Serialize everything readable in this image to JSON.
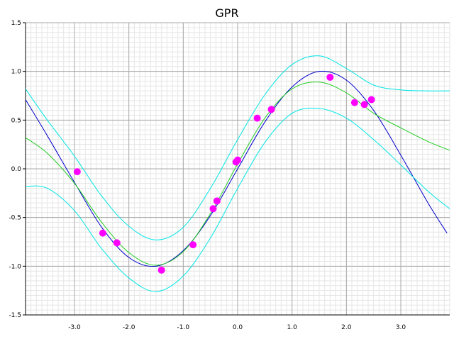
{
  "chart_data": {
    "type": "line",
    "title": "GPR",
    "xlabel": "",
    "ylabel": "",
    "xlim": [
      -3.9,
      3.9
    ],
    "ylim": [
      -1.5,
      1.5
    ],
    "grid": true,
    "xticks": [
      -3.0,
      -2.0,
      -1.0,
      0.0,
      1.0,
      2.0,
      3.0
    ],
    "xtick_labels": [
      "-3.0",
      "-2.0",
      "-1.0",
      "0.0",
      "1.0",
      "2.0",
      "3.0"
    ],
    "yticks": [
      -1.5,
      -1.0,
      -0.5,
      0.0,
      0.5,
      1.0,
      1.5
    ],
    "ytick_labels": [
      "-1.5",
      "-1.0",
      "-0.5",
      "0.0",
      "0.5",
      "1.0",
      "1.5"
    ],
    "series": [
      {
        "kind": "line",
        "color": "#0000cc",
        "x": [
          -3.9,
          -3.5,
          -3.0,
          -2.5,
          -2.0,
          -1.5,
          -1.0,
          -0.5,
          0.0,
          0.5,
          1.0,
          1.5,
          2.0,
          2.5,
          3.0,
          3.5,
          3.85
        ],
        "y": [
          0.71,
          0.34,
          -0.14,
          -0.6,
          -0.91,
          -1.0,
          -0.84,
          -0.48,
          0.0,
          0.48,
          0.84,
          1.0,
          0.91,
          0.6,
          0.14,
          -0.35,
          -0.66
        ]
      },
      {
        "kind": "line",
        "color": "#22cc22",
        "x": [
          -3.9,
          -3.5,
          -3.0,
          -2.5,
          -2.0,
          -1.5,
          -1.0,
          -0.5,
          0.0,
          0.5,
          1.0,
          1.5,
          2.0,
          2.5,
          3.0,
          3.5,
          3.9
        ],
        "y": [
          0.32,
          0.16,
          -0.15,
          -0.55,
          -0.86,
          -0.99,
          -0.85,
          -0.46,
          0.05,
          0.52,
          0.82,
          0.89,
          0.78,
          0.57,
          0.42,
          0.28,
          0.19
        ]
      },
      {
        "kind": "line",
        "color": "#00e5e5",
        "x": [
          -3.9,
          -3.5,
          -3.0,
          -2.5,
          -2.0,
          -1.5,
          -1.0,
          -0.5,
          0.0,
          0.5,
          1.0,
          1.5,
          2.0,
          2.5,
          3.0,
          3.5,
          3.9
        ],
        "y": [
          0.82,
          0.5,
          0.13,
          -0.28,
          -0.59,
          -0.73,
          -0.6,
          -0.2,
          0.3,
          0.76,
          1.07,
          1.16,
          1.03,
          0.86,
          0.81,
          0.8,
          0.8
        ]
      },
      {
        "kind": "line",
        "color": "#00e5e5",
        "x": [
          -3.9,
          -3.5,
          -3.0,
          -2.5,
          -2.0,
          -1.5,
          -1.0,
          -0.5,
          0.0,
          0.5,
          1.0,
          1.5,
          2.0,
          2.5,
          3.0,
          3.5,
          3.9
        ],
        "y": [
          -0.18,
          -0.2,
          -0.43,
          -0.82,
          -1.12,
          -1.26,
          -1.1,
          -0.71,
          -0.2,
          0.27,
          0.57,
          0.62,
          0.52,
          0.3,
          0.04,
          -0.23,
          -0.41
        ]
      },
      {
        "kind": "scatter",
        "color": "#ff00ff",
        "x": [
          -2.95,
          -2.48,
          -2.22,
          -1.4,
          -0.82,
          -0.45,
          -0.38,
          -0.03,
          0.0,
          0.36,
          0.62,
          1.7,
          2.15,
          2.33,
          2.46
        ],
        "y": [
          -0.03,
          -0.66,
          -0.76,
          -1.04,
          -0.78,
          -0.41,
          -0.33,
          0.07,
          0.09,
          0.52,
          0.61,
          0.94,
          0.68,
          0.66,
          0.71
        ]
      }
    ]
  }
}
